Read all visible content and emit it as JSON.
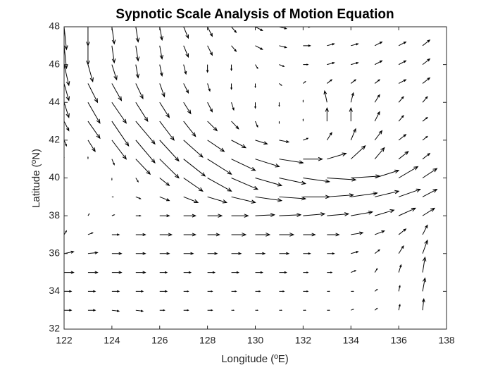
{
  "chart_data": {
    "type": "quiver",
    "title": "Sypnotic Scale Analysis of Motion Equation",
    "x_label": "Longitude (ºE)",
    "y_label": "Latitude (ºN)",
    "color": "#000000",
    "xlim": [
      122,
      138
    ],
    "ylim": [
      32,
      48
    ],
    "xticks": [
      122,
      124,
      126,
      128,
      130,
      132,
      134,
      136,
      138
    ],
    "yticks": [
      32,
      34,
      36,
      38,
      40,
      42,
      44,
      46,
      48
    ],
    "x": [
      122,
      123,
      124,
      125,
      126,
      127,
      128,
      129,
      130,
      131,
      132,
      133,
      134,
      135,
      136,
      137
    ],
    "y": [
      33,
      34,
      35,
      36,
      37,
      38,
      39,
      40,
      41,
      42,
      43,
      44,
      45,
      46,
      47,
      48
    ],
    "u": [
      [
        0.3,
        0.3,
        0.3,
        0.3,
        0.2,
        0.2,
        0.2,
        0.1,
        0.1,
        0.1,
        0.1,
        0.1,
        0.1,
        0.1,
        0.05,
        0.05
      ],
      [
        0.3,
        0.3,
        0.3,
        0.3,
        0.3,
        0.2,
        0.2,
        0.2,
        0.2,
        0.2,
        0.2,
        0.1,
        0.1,
        0.1,
        0.05,
        0.1
      ],
      [
        0.4,
        0.4,
        0.4,
        0.4,
        0.3,
        0.3,
        0.3,
        0.3,
        0.3,
        0.3,
        0.2,
        0.2,
        0.2,
        0.1,
        0.1,
        0.1
      ],
      [
        0.4,
        0.4,
        0.4,
        0.4,
        0.4,
        0.4,
        0.4,
        0.4,
        0.4,
        0.4,
        0.3,
        0.3,
        0.3,
        0.2,
        0.2,
        0.2
      ],
      [
        0.1,
        0.2,
        0.3,
        0.4,
        0.5,
        0.5,
        0.5,
        0.6,
        0.6,
        0.6,
        0.5,
        0.5,
        0.5,
        0.4,
        0.3,
        0.2
      ],
      [
        0,
        0.05,
        0.1,
        0.2,
        0.4,
        0.5,
        0.6,
        0.7,
        0.8,
        0.9,
        0.9,
        0.9,
        0.9,
        0.8,
        0.7,
        0.5
      ],
      [
        0,
        0,
        0.05,
        0.2,
        0.4,
        0.6,
        0.8,
        1,
        1.1,
        1.1,
        1.1,
        1.1,
        1.1,
        1,
        0.9,
        0.6
      ],
      [
        0,
        0,
        0,
        0.1,
        0.4,
        0.8,
        1,
        1.1,
        1.1,
        1.1,
        1.1,
        1.2,
        1.2,
        1,
        0.8,
        0.6
      ],
      [
        0,
        0,
        0.1,
        0.6,
        0.8,
        0.9,
        1,
        1,
        1,
        1,
        0.8,
        0.8,
        0.6,
        0.4,
        0.4,
        0.3
      ],
      [
        0.1,
        0.3,
        0.6,
        0.8,
        0.8,
        0.8,
        0.7,
        0.6,
        0.5,
        0.4,
        0.2,
        0.2,
        0.2,
        0.3,
        0.3,
        0.2
      ],
      [
        0.2,
        0.5,
        0.7,
        0.8,
        0.6,
        0.5,
        0.4,
        0.3,
        0.1,
        0,
        0,
        0,
        0,
        0.2,
        0.2,
        0.2
      ],
      [
        0.2,
        0.5,
        0.6,
        0.5,
        0.4,
        0.3,
        0.2,
        0.1,
        0,
        0,
        0,
        -0.1,
        0.1,
        0.2,
        0.2,
        0.2
      ],
      [
        0.2,
        0.4,
        0.4,
        0.3,
        0.2,
        0.2,
        0.1,
        0,
        0,
        0.1,
        0.1,
        0.2,
        0.2,
        0.2,
        0.3,
        0.3
      ],
      [
        0.2,
        0.2,
        0.2,
        0.1,
        0.1,
        0.1,
        0,
        0,
        0.1,
        0.2,
        0.2,
        0.3,
        0.3,
        0.3,
        0.3,
        0.3
      ],
      [
        0.1,
        0,
        0.1,
        0.1,
        0.1,
        0.2,
        0.2,
        0.2,
        0.3,
        0.3,
        0.3,
        0.3,
        0.3,
        0.3,
        0.3,
        0.3
      ],
      [
        0.1,
        0,
        0.1,
        0.1,
        0.1,
        0.2,
        0.2,
        0.2,
        0.3,
        0.3,
        0.3,
        0.3,
        0.3,
        0.3,
        0.3,
        0.3
      ]
    ],
    "v": [
      [
        0,
        0,
        -0.05,
        -0.05,
        0,
        0,
        0,
        0,
        0,
        0,
        0,
        0,
        0.05,
        0.1,
        0.3,
        0.6
      ],
      [
        0,
        0,
        0,
        0,
        0,
        0,
        0,
        0,
        0,
        0,
        0,
        0,
        0,
        0.1,
        0.3,
        0.7
      ],
      [
        0,
        0,
        0,
        0,
        0,
        0,
        0,
        0,
        0,
        0,
        0,
        0,
        0.1,
        0.2,
        0.4,
        0.8
      ],
      [
        0.1,
        0.05,
        0,
        0,
        0,
        0,
        0,
        0,
        0,
        0,
        0,
        0,
        0.1,
        0.2,
        0.4,
        0.7
      ],
      [
        0.2,
        0.1,
        0,
        0,
        0,
        0,
        0,
        0,
        0,
        0,
        0,
        0,
        0.1,
        0.2,
        0.3,
        0.5
      ],
      [
        0.1,
        0.1,
        0.05,
        0,
        0,
        0,
        0,
        0,
        0.05,
        0.05,
        0.1,
        0.1,
        0.2,
        0.3,
        0.4,
        0.4
      ],
      [
        0.05,
        0,
        0,
        -0.1,
        -0.2,
        -0.3,
        -0.3,
        -0.3,
        -0.2,
        -0.1,
        0,
        0.1,
        0.2,
        0.3,
        0.4,
        0.4
      ],
      [
        0,
        0,
        -0.1,
        -0.2,
        -0.4,
        -0.7,
        -0.7,
        -0.6,
        -0.4,
        -0.3,
        -0.2,
        -0.1,
        0.1,
        0.4,
        0.6,
        0.5
      ],
      [
        0.1,
        0.1,
        -0.3,
        -0.8,
        -1,
        -0.9,
        -0.8,
        -0.6,
        -0.4,
        -0.2,
        0,
        0.3,
        0.7,
        0.6,
        0.4,
        0.3
      ],
      [
        -0.3,
        -0.6,
        -1,
        -1.2,
        -1.1,
        -0.9,
        -0.6,
        -0.4,
        -0.2,
        -0.1,
        0.1,
        0.4,
        0.6,
        0.5,
        0.3,
        0.2
      ],
      [
        -0.5,
        -0.9,
        -1.3,
        -1.2,
        -1,
        -0.8,
        -0.5,
        -0.4,
        -0.3,
        -0.1,
        0.1,
        0.7,
        0.7,
        0.5,
        0.3,
        0.2
      ],
      [
        -0.8,
        -1.1,
        -1.1,
        -1,
        -0.8,
        -0.6,
        -0.5,
        -0.4,
        -0.3,
        -0.2,
        0.1,
        0.6,
        0.5,
        0.4,
        0.3,
        0.3
      ],
      [
        -0.9,
        -1,
        -0.9,
        -0.8,
        -0.7,
        -0.5,
        -0.4,
        -0.3,
        -0.2,
        -0.1,
        0.1,
        0.2,
        0.2,
        0.2,
        0.2,
        0.3
      ],
      [
        -1.1,
        -0.9,
        -0.8,
        -0.7,
        -0.6,
        -0.5,
        -0.4,
        -0.3,
        -0.2,
        -0.1,
        0,
        0.1,
        0.1,
        0.2,
        0.2,
        0.3
      ],
      [
        -1.2,
        -1,
        -0.9,
        -0.8,
        -0.7,
        -0.6,
        -0.5,
        -0.3,
        -0.2,
        -0.1,
        0,
        0.1,
        0.1,
        0.2,
        0.2,
        0.3
      ],
      [
        -1.2,
        -1,
        -0.9,
        -0.8,
        -0.7,
        -0.6,
        -0.5,
        -0.3,
        -0.2,
        -0.1,
        0,
        0.1,
        0.1,
        0.2,
        0.2,
        0.3
      ]
    ]
  }
}
